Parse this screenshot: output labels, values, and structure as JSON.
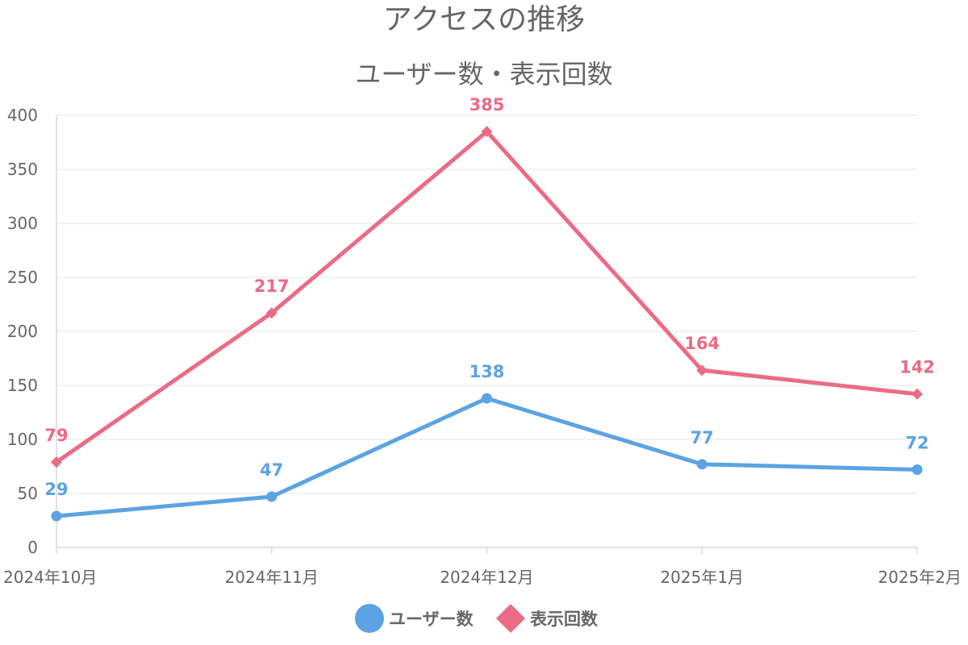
{
  "chart_data": {
    "type": "line",
    "title": "アクセスの推移",
    "subtitle": "ユーザー数・表示回数",
    "categories": [
      "2024年10月",
      "2024年11月",
      "2024年12月",
      "2025年1月",
      "2025年2月"
    ],
    "y_ticks": [
      0,
      50,
      100,
      150,
      200,
      250,
      300,
      350,
      400
    ],
    "ylim": [
      0,
      400
    ],
    "grid": true,
    "legend_position": "bottom-center",
    "series": [
      {
        "name": "ユーザー数",
        "values": [
          29,
          47,
          138,
          77,
          72
        ],
        "color": "#5ba3e3",
        "marker": "circle"
      },
      {
        "name": "表示回数",
        "values": [
          79,
          217,
          385,
          164,
          142
        ],
        "color": "#eb6b86",
        "marker": "diamond"
      }
    ]
  }
}
